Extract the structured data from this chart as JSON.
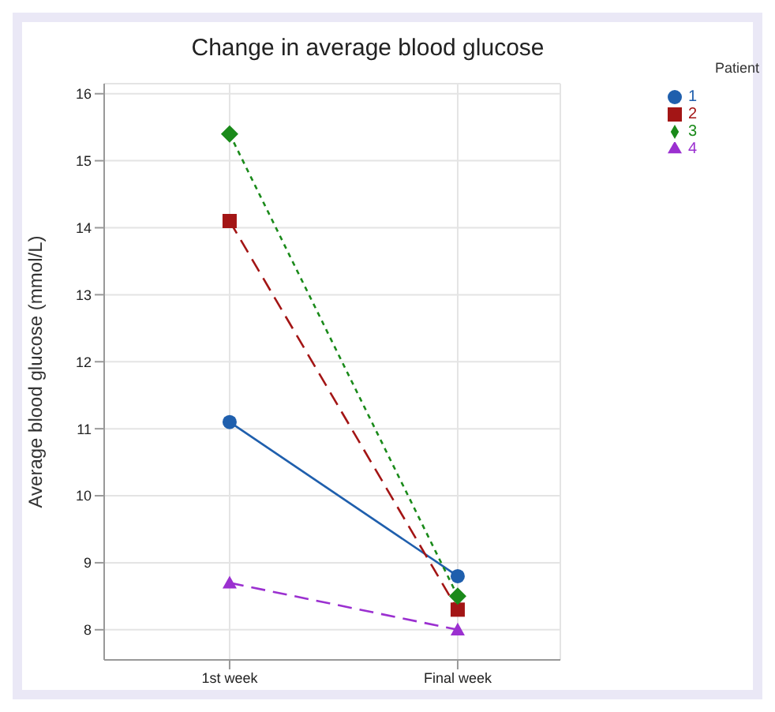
{
  "chart_data": {
    "type": "line",
    "title": "Change in average blood glucose",
    "ylabel": "Average blood glucose (mmol/L)",
    "legend_title": "Patient",
    "categories": [
      "1st week",
      "Final week"
    ],
    "series": [
      {
        "name": "1",
        "color": "#1f5fad",
        "values": [
          11.1,
          8.8
        ],
        "marker": "circle",
        "line_style": "solid"
      },
      {
        "name": "2",
        "color": "#a31515",
        "values": [
          14.1,
          8.3
        ],
        "marker": "square",
        "line_style": "dashed"
      },
      {
        "name": "3",
        "color": "#1a8a1a",
        "values": [
          15.4,
          8.5
        ],
        "marker": "diamond",
        "line_style": "dotted"
      },
      {
        "name": "4",
        "color": "#9b30d0",
        "values": [
          8.7,
          8.0
        ],
        "marker": "triangle",
        "line_style": "dashed"
      }
    ],
    "ylim": [
      7.55,
      16.15
    ],
    "yticks": [
      8,
      9,
      10,
      11,
      12,
      13,
      14,
      15,
      16
    ],
    "grid": true,
    "legend": "top right"
  }
}
